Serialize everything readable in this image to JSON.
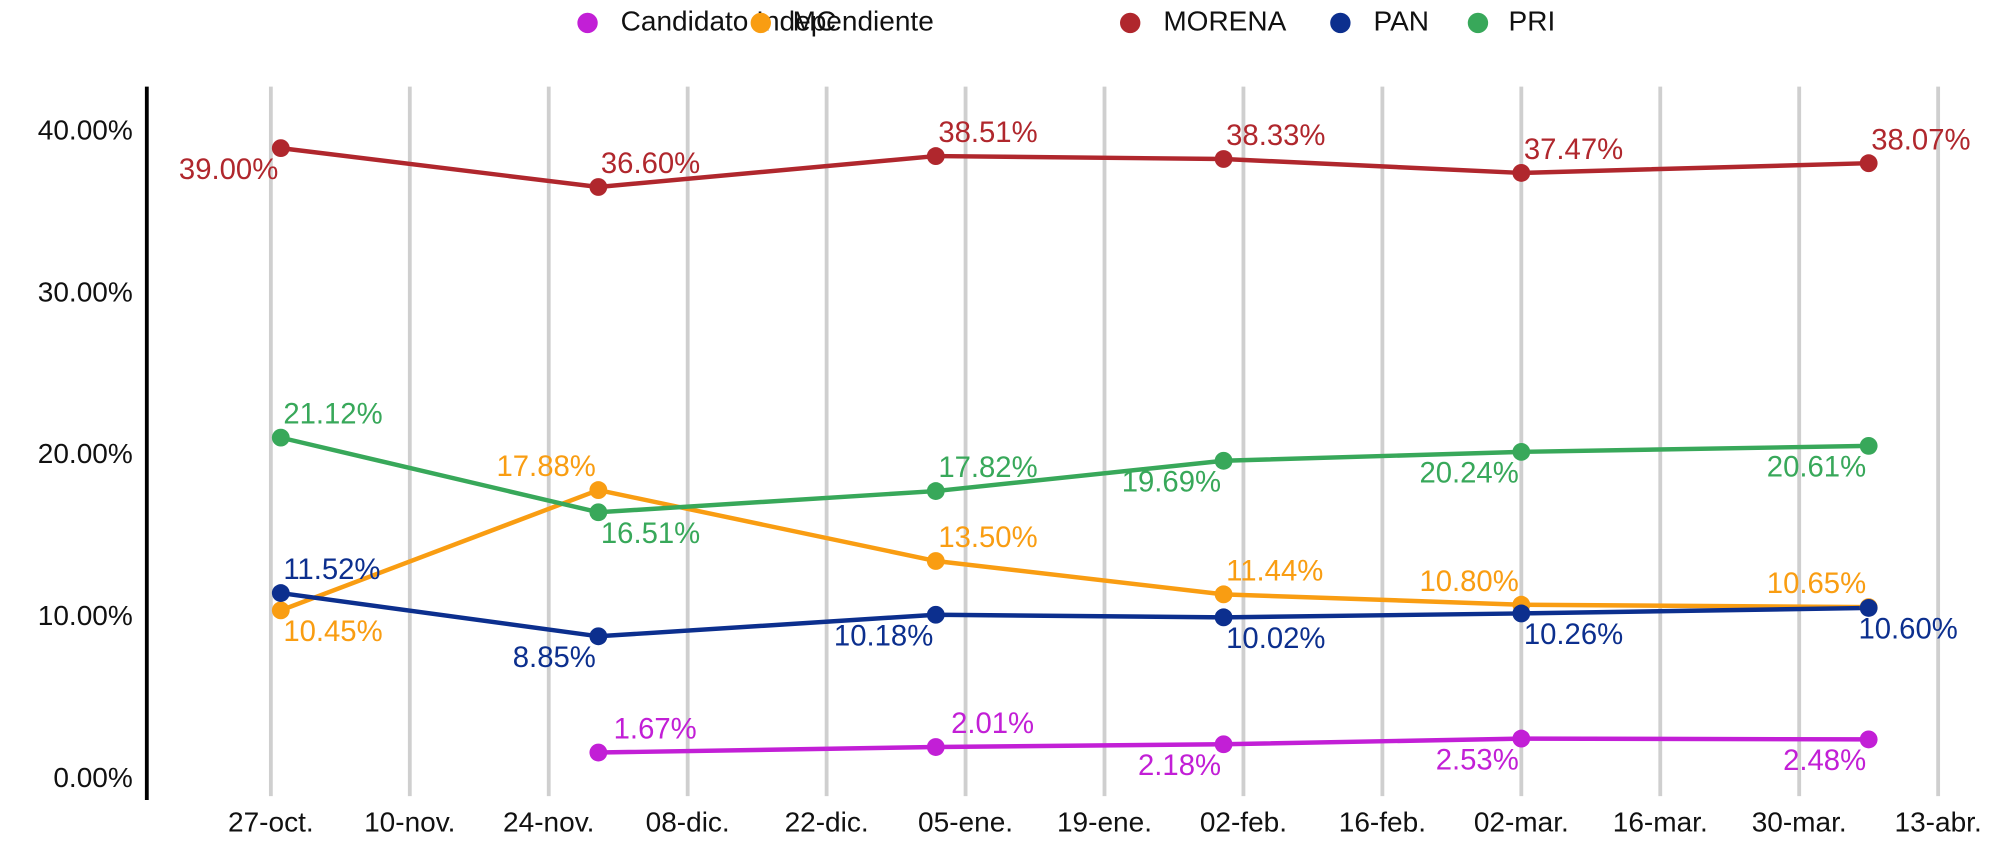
{
  "chart_data": {
    "type": "line",
    "x": [
      1,
      33,
      67,
      96,
      126,
      161
    ],
    "xlim": [
      -12.5,
      174
    ],
    "xticks": [
      {
        "value": 0,
        "label": "27-oct."
      },
      {
        "value": 14,
        "label": "10-nov."
      },
      {
        "value": 28,
        "label": "24-nov."
      },
      {
        "value": 42,
        "label": "08-dic."
      },
      {
        "value": 56,
        "label": "22-dic."
      },
      {
        "value": 70,
        "label": "05-ene."
      },
      {
        "value": 84,
        "label": "19-ene."
      },
      {
        "value": 98,
        "label": "02-feb."
      },
      {
        "value": 112,
        "label": "16-feb."
      },
      {
        "value": 126,
        "label": "02-mar."
      },
      {
        "value": 140,
        "label": "16-mar."
      },
      {
        "value": 154,
        "label": "30-mar."
      },
      {
        "value": 168,
        "label": "13-abr."
      }
    ],
    "ylim": [
      -1.26,
      42.8
    ],
    "yticks": [
      {
        "value": 0,
        "label": "0.00%"
      },
      {
        "value": 10,
        "label": "10.00%"
      },
      {
        "value": 20,
        "label": "20.00%"
      },
      {
        "value": 30,
        "label": "30.00%"
      },
      {
        "value": 40,
        "label": "40.00%"
      }
    ],
    "grid": "x",
    "legend": "top",
    "series": [
      {
        "name": "Candidato Independiente",
        "color": "#c21fd6",
        "values": [
          null,
          1.67,
          2.01,
          2.18,
          2.53,
          2.48
        ],
        "value_labels": [
          null,
          "1.67%",
          "2.01%",
          "2.18%",
          "2.53%",
          "2.48%"
        ]
      },
      {
        "name": "MC",
        "color": "#f99d12",
        "values": [
          10.45,
          17.88,
          13.5,
          11.44,
          10.8,
          10.65
        ],
        "value_labels": [
          "10.45%",
          "17.88%",
          "13.50%",
          "11.44%",
          "10.80%",
          "10.65%"
        ]
      },
      {
        "name": "MORENA",
        "color": "#b0272d",
        "values": [
          39.0,
          36.6,
          38.51,
          38.33,
          37.47,
          38.07
        ],
        "value_labels": [
          "39.00%",
          "36.60%",
          "38.51%",
          "38.33%",
          "37.47%",
          "38.07%"
        ]
      },
      {
        "name": "PAN",
        "color": "#0c2f8e",
        "values": [
          11.52,
          8.85,
          10.18,
          10.02,
          10.26,
          10.6
        ],
        "value_labels": [
          "11.52%",
          "8.85%",
          "10.18%",
          "10.02%",
          "10.26%",
          "10.60%"
        ]
      },
      {
        "name": "PRI",
        "color": "#38a85a",
        "values": [
          21.12,
          16.51,
          17.82,
          19.69,
          20.24,
          20.61
        ],
        "value_labels": [
          "21.12%",
          "16.51%",
          "17.82%",
          "19.69%",
          "20.24%",
          "20.61%"
        ]
      }
    ]
  }
}
